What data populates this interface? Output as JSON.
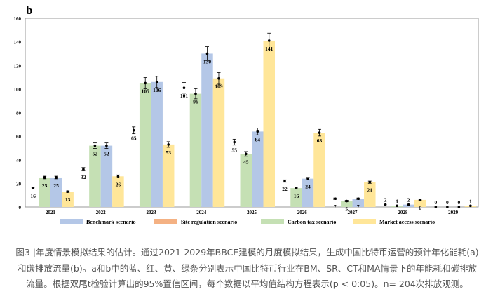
{
  "panel_label": "b",
  "chart_data": {
    "type": "bar",
    "title": "",
    "xlabel": "",
    "ylabel": "",
    "ylim": [
      0,
      160
    ],
    "yticks": [
      0,
      20,
      40,
      60,
      80,
      100,
      120,
      140,
      160
    ],
    "categories": [
      "2021",
      "2022",
      "2023",
      "2024",
      "2025",
      "2026",
      "2027",
      "2028",
      "2029"
    ],
    "series": [
      {
        "name": "Site regulation scenario",
        "color": "#F4B183",
        "values": [
          16,
          32,
          65,
          101,
          55,
          22,
          7,
          2,
          0
        ],
        "bar": false
      },
      {
        "name": "Carbon tax scenario",
        "color": "#C5E0B4",
        "values": [
          25,
          52,
          105,
          96,
          45,
          16,
          5,
          1,
          0
        ],
        "bar": true
      },
      {
        "name": "Benchmark scenario",
        "color": "#B4C7E7",
        "values": [
          25,
          52,
          106,
          130,
          64,
          24,
          7,
          2,
          0
        ],
        "bar": true
      },
      {
        "name": "Market access scenario",
        "color": "#FFE699",
        "values": [
          13,
          26,
          53,
          109,
          141,
          63,
          21,
          6,
          1
        ],
        "bar": true
      }
    ],
    "legend_order": [
      "Benchmark scenario",
      "Site regulation scenario",
      "Carbon tax scenario",
      "Market access scenario"
    ],
    "legend_placement": "bottom"
  },
  "caption": "图3 |年度情景模拟结果的估计。通过2021-2029年BBCE建模的月度模拟结果，生成中国比特币运营的预计年化能耗(a)和碳排放流量(b)。a和b中的蓝、红、黄、绿条分别表示中国比特币行业在BM、SR、CT和MA情景下的年能耗和碳排放流量。根据双尾t检验计算出的95%置信区间，每个数据以平均值结构方程表示(p < 0:05)。n= 204次排放观测。"
}
